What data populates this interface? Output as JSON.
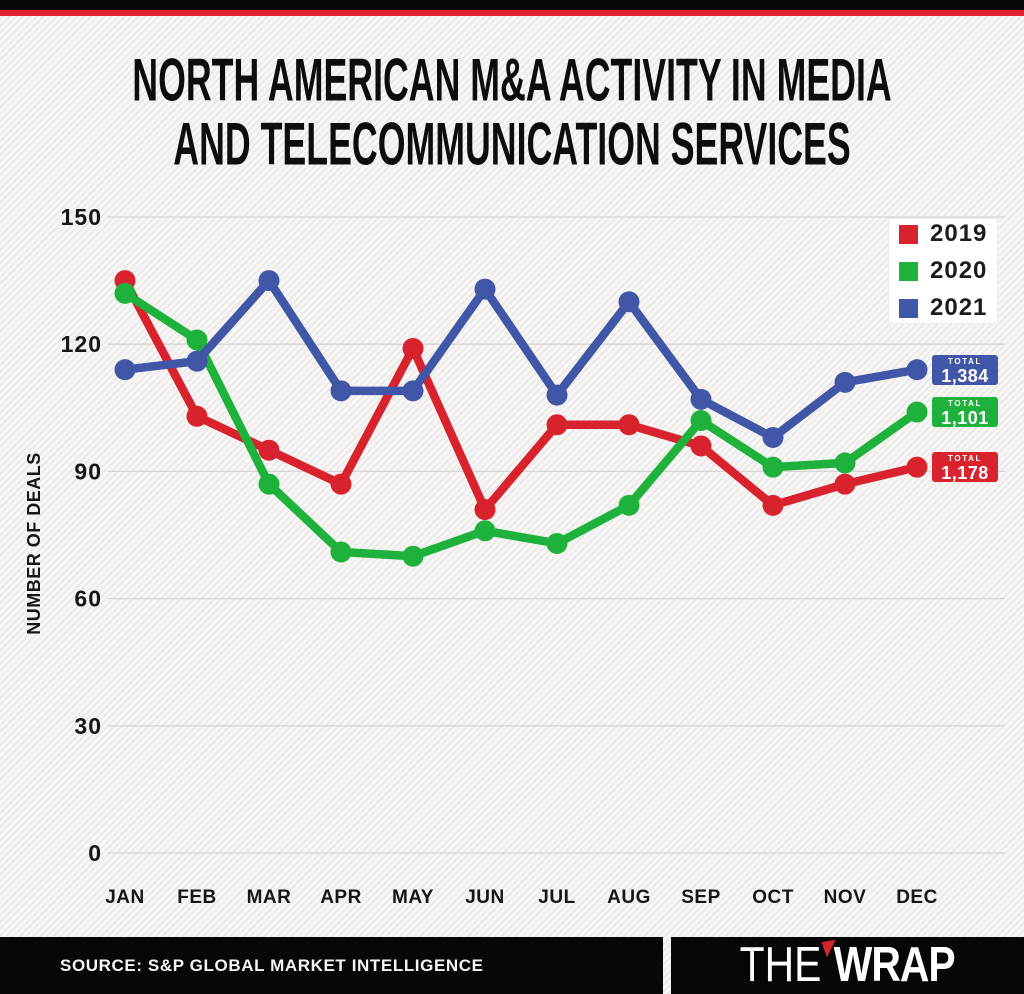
{
  "title": {
    "line1": "NORTH AMERICAN M&A ACTIVITY IN MEDIA",
    "line2": "AND TELECOMMUNICATION SERVICES"
  },
  "chart_data": {
    "type": "line",
    "x": [
      "JAN",
      "FEB",
      "MAR",
      "APR",
      "MAY",
      "JUN",
      "JUL",
      "AUG",
      "SEP",
      "OCT",
      "NOV",
      "DEC"
    ],
    "ylabel": "NUMBER OF DEALS",
    "yticks": [
      0,
      30,
      60,
      90,
      120,
      150
    ],
    "ylim": [
      0,
      150
    ],
    "grid": true,
    "legend_position": "top-right",
    "total_label": "TOTAL",
    "series": [
      {
        "name": "2019",
        "color": "#d8232e",
        "total": "1,178",
        "values": [
          135,
          103,
          95,
          87,
          119,
          81,
          101,
          101,
          96,
          82,
          87,
          91
        ]
      },
      {
        "name": "2020",
        "color": "#1eb23c",
        "total": "1,101",
        "values": [
          132,
          121,
          87,
          71,
          70,
          76,
          73,
          82,
          102,
          91,
          92,
          104
        ]
      },
      {
        "name": "2021",
        "color": "#4156a6",
        "total": "1,384",
        "values": [
          114,
          116,
          135,
          109,
          109,
          133,
          108,
          130,
          107,
          98,
          111,
          114
        ]
      }
    ]
  },
  "footer": {
    "source": "SOURCE: S&P GLOBAL MARKET INTELLIGENCE",
    "logo_the": "THE",
    "logo_wrap": "WRAP"
  }
}
